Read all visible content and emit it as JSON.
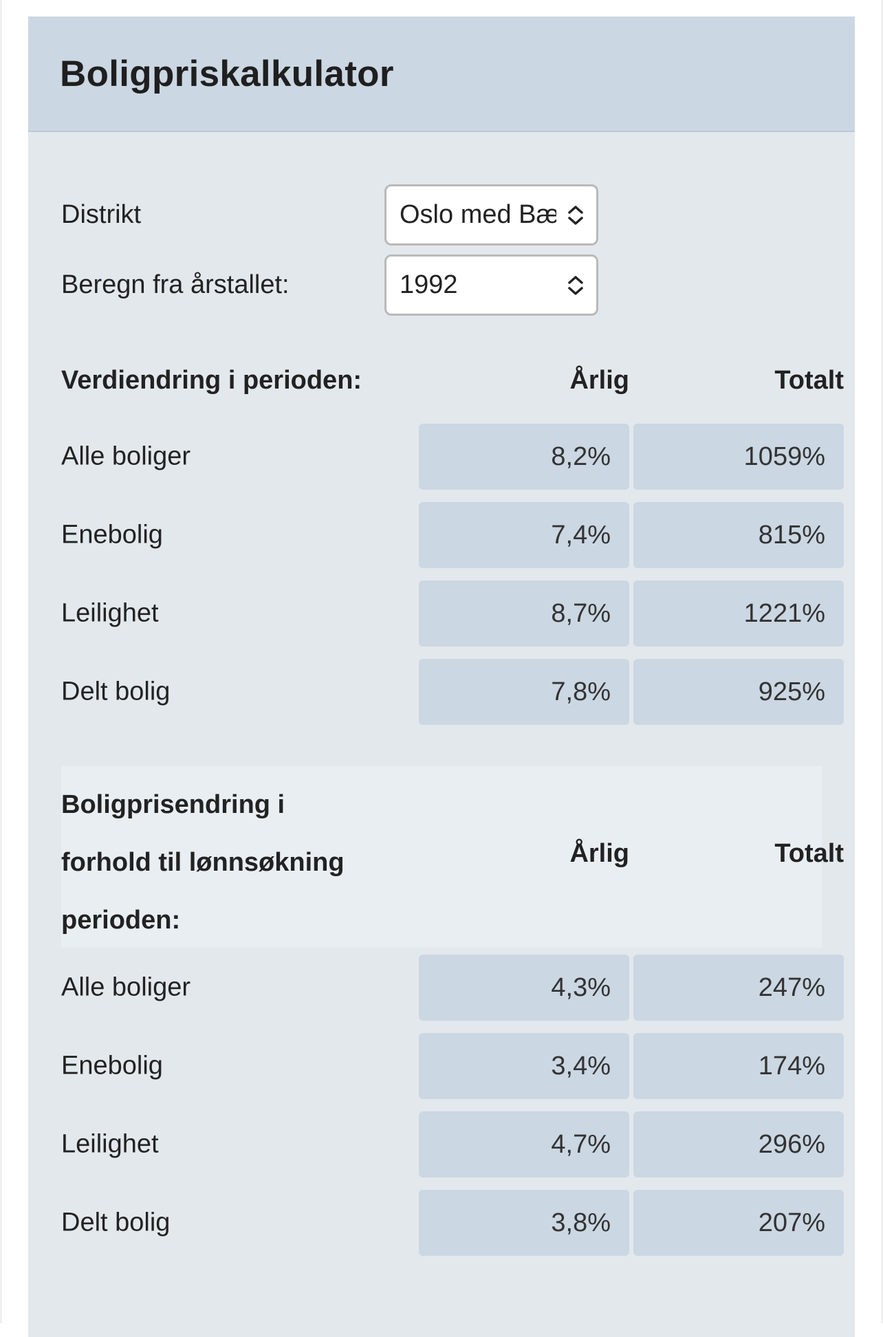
{
  "header": {
    "title": "Boligpriskalkulator"
  },
  "form": {
    "district": {
      "label": "Distrikt",
      "value": "Oslo med Bærum"
    },
    "year": {
      "label": "Beregn fra årstallet:",
      "value": "1992"
    }
  },
  "section1": {
    "title": "Verdiendring i perioden:",
    "col_annual": "Årlig",
    "col_total": "Totalt",
    "rows": [
      {
        "label": "Alle boliger",
        "annual": "8,2%",
        "total": "1059%"
      },
      {
        "label": "Enebolig",
        "annual": "7,4%",
        "total": "815%"
      },
      {
        "label": "Leilighet",
        "annual": "8,7%",
        "total": "1221%"
      },
      {
        "label": "Delt bolig",
        "annual": "7,8%",
        "total": "925%"
      }
    ]
  },
  "section2": {
    "title": "Boligprisendring i forhold til lønnsøkning perioden:",
    "col_annual": "Årlig",
    "col_total": "Totalt",
    "rows": [
      {
        "label": "Alle boliger",
        "annual": "4,3%",
        "total": "247%"
      },
      {
        "label": "Enebolig",
        "annual": "3,4%",
        "total": "174%"
      },
      {
        "label": "Leilighet",
        "annual": "4,7%",
        "total": "296%"
      },
      {
        "label": "Delt bolig",
        "annual": "3,8%",
        "total": "207%"
      }
    ]
  },
  "icons": {
    "select_arrows": "chevron-up-down-icon"
  },
  "colors": {
    "header_bg": "#cbd7e2",
    "card_bg": "#e3e8ed",
    "cell_bg": "#cbd7e2"
  }
}
